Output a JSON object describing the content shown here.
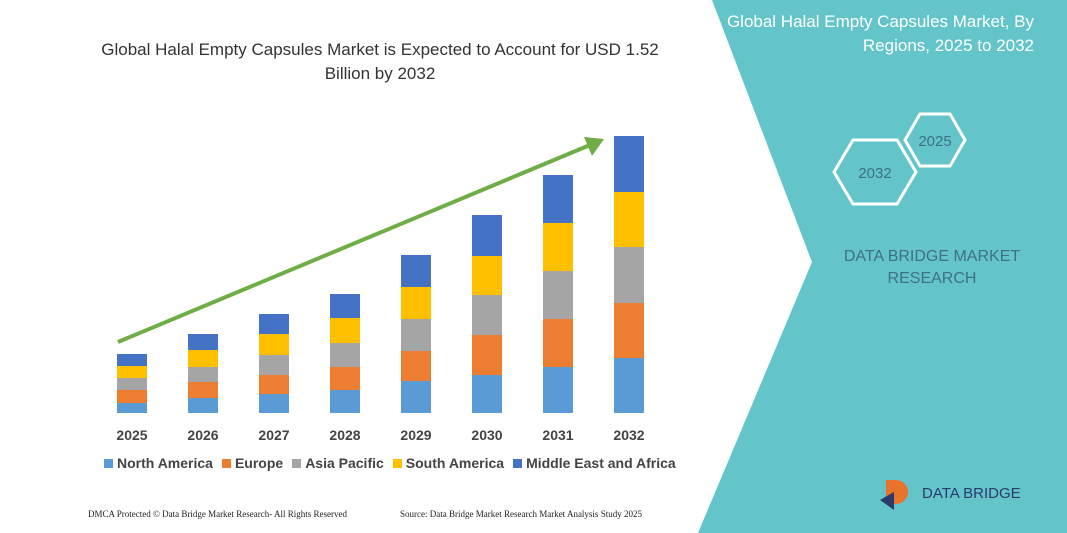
{
  "chart_data": {
    "type": "bar",
    "stacked": true,
    "title": "Global Halal Empty Capsules Market is Expected to Account for USD 1.52 Billion by 2032",
    "categories": [
      "2025",
      "2026",
      "2027",
      "2028",
      "2029",
      "2030",
      "2031",
      "2032"
    ],
    "series": [
      {
        "name": "North America",
        "color": "#5b9bd5",
        "values": [
          10,
          15,
          19,
          23,
          32,
          38,
          46,
          55
        ]
      },
      {
        "name": "Europe",
        "color": "#ed7d31",
        "values": [
          13,
          16,
          19,
          23,
          30,
          40,
          48,
          55
        ]
      },
      {
        "name": "Asia Pacific",
        "color": "#a5a5a5",
        "values": [
          12,
          15,
          20,
          24,
          32,
          40,
          48,
          56
        ]
      },
      {
        "name": "South America",
        "color": "#ffc000",
        "values": [
          12,
          17,
          21,
          25,
          32,
          39,
          48,
          55
        ]
      },
      {
        "name": "Middle East and Africa",
        "color": "#4472c4",
        "values": [
          12,
          16,
          20,
          24,
          32,
          41,
          48,
          56
        ]
      }
    ]
  },
  "side_panel": {
    "title": "Global Halal Empty Capsules Market, By Regions, 2025 to 2032",
    "hexagons": [
      "2025",
      "2032"
    ],
    "brand": "DATA BRIDGE MARKET RESEARCH"
  },
  "footer": {
    "left": "DMCA Protected © Data Bridge Market Research- All Rights Reserved",
    "right": "Source: Data Bridge Market Research Market Analysis Study 2025",
    "logo": "DATA BRIDGE"
  }
}
